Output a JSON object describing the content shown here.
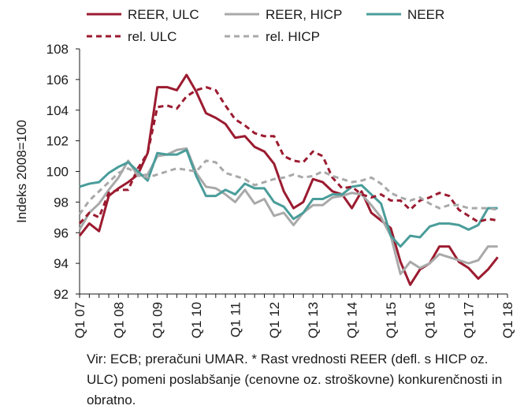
{
  "chart_data": {
    "type": "line",
    "ylabel": "Indeks 2008=100",
    "xlabel": "",
    "ylim": [
      92,
      108
    ],
    "yticks": [
      92,
      94,
      96,
      98,
      100,
      102,
      104,
      106,
      108
    ],
    "x": [
      "Q1 07",
      "Q2 07",
      "Q3 07",
      "Q4 07",
      "Q1 08",
      "Q2 08",
      "Q3 08",
      "Q4 08",
      "Q1 09",
      "Q2 09",
      "Q3 09",
      "Q4 09",
      "Q1 10",
      "Q2 10",
      "Q3 10",
      "Q4 10",
      "Q1 11",
      "Q2 11",
      "Q3 11",
      "Q4 11",
      "Q1 12",
      "Q2 12",
      "Q3 12",
      "Q4 12",
      "Q1 13",
      "Q2 13",
      "Q3 13",
      "Q4 13",
      "Q1 14",
      "Q2 14",
      "Q3 14",
      "Q4 14",
      "Q1 15",
      "Q2 15",
      "Q3 15",
      "Q4 15",
      "Q1 16",
      "Q2 16",
      "Q3 16",
      "Q4 16",
      "Q1 17",
      "Q2 17",
      "Q3 17",
      "Q4 17",
      "Q1 18"
    ],
    "xtick_labels": [
      "Q1 07",
      "Q1 08",
      "Q1 09",
      "Q1 10",
      "Q1 11",
      "Q1 12",
      "Q1 13",
      "Q1 14",
      "Q1 15",
      "Q1 16",
      "Q1 17",
      "Q1 18"
    ],
    "series": [
      {
        "name": "REER, ULC",
        "color": "#9b1b30",
        "dash": "solid",
        "values": [
          95.8,
          96.6,
          96.1,
          98.4,
          98.9,
          99.3,
          99.8,
          101.2,
          105.5,
          105.5,
          105.3,
          106.3,
          105.2,
          103.8,
          103.5,
          103.1,
          102.2,
          102.3,
          101.6,
          101.3,
          100.5,
          98.7,
          97.6,
          98.0,
          99.5,
          99.3,
          98.7,
          98.5,
          97.6,
          98.7,
          97.3,
          96.8,
          96.3,
          94.1,
          92.6,
          93.6,
          94.0,
          95.1,
          95.1,
          94.1,
          93.7,
          93.0,
          93.6,
          94.4,
          null
        ]
      },
      {
        "name": "REER, HICP",
        "color": "#a9a9a9",
        "dash": "solid",
        "values": [
          96.2,
          97.3,
          97.9,
          98.8,
          99.6,
          100.7,
          99.7,
          99.8,
          101.0,
          101.1,
          101.4,
          101.5,
          99.9,
          99.0,
          98.9,
          98.5,
          98.0,
          98.8,
          97.9,
          98.2,
          97.1,
          97.3,
          96.5,
          97.3,
          97.8,
          97.8,
          98.3,
          98.4,
          98.6,
          98.5,
          97.8,
          97.0,
          95.8,
          93.3,
          94.1,
          93.7,
          94.0,
          94.6,
          94.4,
          94.2,
          94.0,
          94.2,
          95.1,
          95.1,
          null
        ]
      },
      {
        "name": "NEER",
        "color": "#4a9d9a",
        "dash": "solid",
        "values": [
          99.0,
          99.2,
          99.3,
          99.9,
          100.3,
          100.6,
          100.0,
          99.4,
          101.2,
          101.1,
          101.1,
          101.4,
          99.7,
          98.4,
          98.4,
          98.8,
          98.5,
          99.2,
          98.9,
          98.9,
          98.0,
          97.7,
          96.9,
          97.3,
          98.2,
          98.2,
          98.5,
          98.5,
          99.0,
          99.1,
          98.5,
          97.9,
          95.8,
          95.1,
          95.8,
          95.7,
          96.4,
          96.6,
          96.6,
          96.5,
          96.2,
          96.5,
          97.6,
          97.6,
          null
        ]
      },
      {
        "name": "rel. ULC",
        "color": "#9b1b30",
        "dash": "dashed",
        "values": [
          96.6,
          97.3,
          97.0,
          98.6,
          98.8,
          98.8,
          100.2,
          101.2,
          104.2,
          104.3,
          104.1,
          104.9,
          105.3,
          105.5,
          105.3,
          104.3,
          103.4,
          103.0,
          102.5,
          102.3,
          102.3,
          101.0,
          100.7,
          100.6,
          101.3,
          101.0,
          99.6,
          98.9,
          99.0,
          98.5,
          98.3,
          98.5,
          98.1,
          98.1,
          97.5,
          98.1,
          98.3,
          98.6,
          98.4,
          97.5,
          97.1,
          96.7,
          96.9,
          96.8,
          null
        ]
      },
      {
        "name": "rel. HICP",
        "color": "#a9a9a9",
        "dash": "dashed",
        "values": [
          97.2,
          98.1,
          98.7,
          99.3,
          99.9,
          100.2,
          99.8,
          99.6,
          99.8,
          100.0,
          100.2,
          100.1,
          100.0,
          100.7,
          100.6,
          99.9,
          99.7,
          99.5,
          99.1,
          99.3,
          99.5,
          99.6,
          99.8,
          99.6,
          99.7,
          100.0,
          99.7,
          99.5,
          99.3,
          99.4,
          99.6,
          99.2,
          98.6,
          98.3,
          98.1,
          98.3,
          97.9,
          97.6,
          97.8,
          97.8,
          97.6,
          97.6,
          97.6,
          97.5,
          null
        ]
      }
    ],
    "legend_position": "top",
    "grid": false
  },
  "note": "Vir: ECB; preračuni UMAR. * Rast vrednosti REER (defl. s HICP oz. ULC) pomeni poslabšanje (cenovne oz. stroškovne) konkurenčnosti in obratno."
}
